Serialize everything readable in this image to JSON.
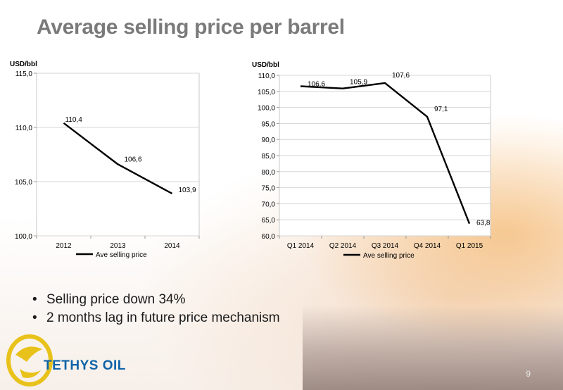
{
  "title": "Average selling price per barrel",
  "bullets": [
    "Selling price down 34%",
    "2 months lag in future price mechanism"
  ],
  "logo_text": "TETHYS OIL",
  "page_number": "9",
  "colors": {
    "title": "#7a7a7a",
    "logo": "#0e63a8",
    "line": "#000000"
  },
  "chart_data": [
    {
      "type": "line",
      "ylabel": "USD/bbl",
      "categories": [
        "2012",
        "2013",
        "2014"
      ],
      "series": [
        {
          "name": "Ave selling price",
          "values": [
            110.4,
            106.6,
            103.9
          ]
        }
      ],
      "value_labels": [
        "110,4",
        "106,6",
        "103,9"
      ],
      "ylim": [
        100,
        115
      ],
      "yticks": [
        100,
        105,
        110,
        115
      ],
      "ytick_labels": [
        "100,0",
        "105,0",
        "110,0",
        "115,0"
      ],
      "grid": true,
      "legend": "bottom"
    },
    {
      "type": "line",
      "ylabel": "USD/bbl",
      "categories": [
        "Q1 2014",
        "Q2 2014",
        "Q3 2014",
        "Q4 2014",
        "Q1 2015"
      ],
      "series": [
        {
          "name": "Ave selling price",
          "values": [
            106.6,
            105.9,
            107.6,
            97.1,
            63.8
          ]
        }
      ],
      "value_labels": [
        "106,6",
        "105,9",
        "107,6",
        "97,1",
        "63,8"
      ],
      "ylim": [
        60,
        110
      ],
      "yticks": [
        60,
        65,
        70,
        75,
        80,
        85,
        90,
        95,
        100,
        105,
        110
      ],
      "ytick_labels": [
        "60,0",
        "65,0",
        "70,0",
        "75,0",
        "80,0",
        "85,0",
        "90,0",
        "95,0",
        "100,0",
        "105,0",
        "110,0"
      ],
      "grid": true,
      "legend": "bottom"
    }
  ]
}
